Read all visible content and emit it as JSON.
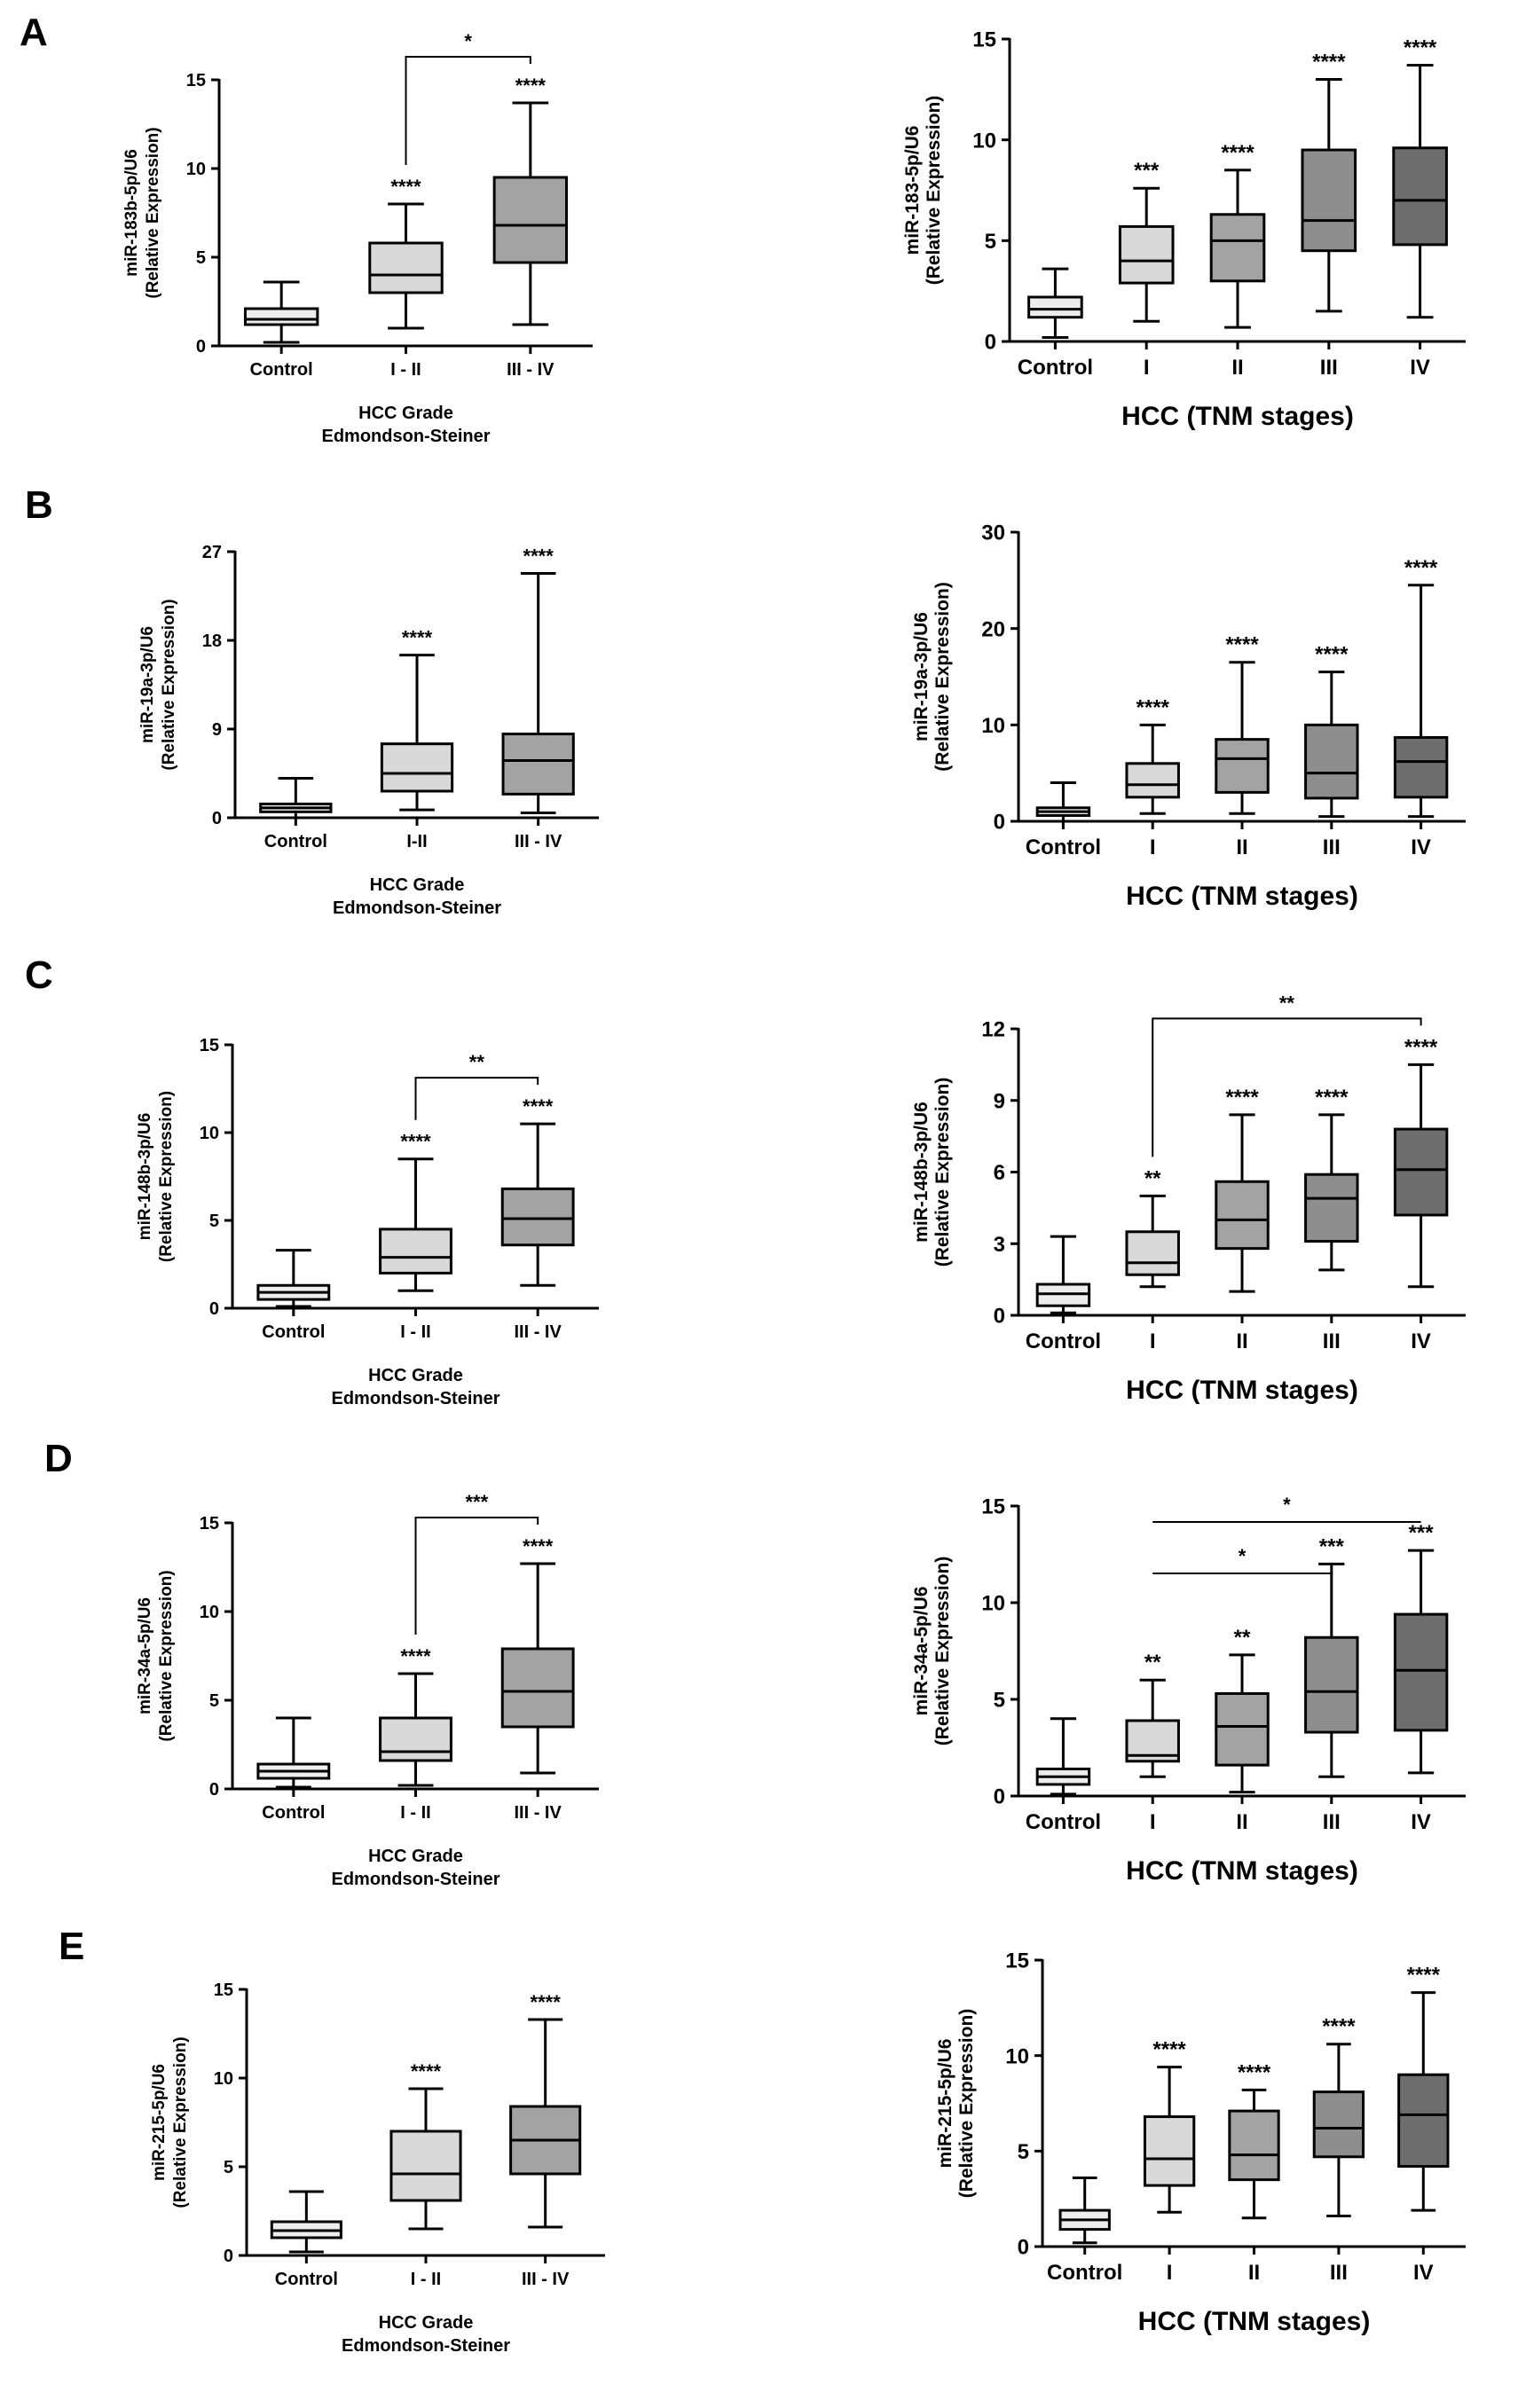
{
  "panels": [
    {
      "letter": "A",
      "left": {
        "ylabel1": "miR-183b-5p/U6",
        "ylabel2": "(Relative Expression)",
        "xlabel1": "HCC Grade",
        "xlabel2": "Edmondson-Steiner"
      },
      "right": {
        "ylabel1": "miR-183-5p/U6",
        "ylabel2": "(Relative Expression)",
        "xlabel1": "HCC (TNM stages)"
      }
    },
    {
      "letter": "B",
      "left": {
        "ylabel1": "miR-19a-3p/U6",
        "ylabel2": "(Relative Expression)",
        "xlabel1": "HCC Grade",
        "xlabel2": "Edmondson-Steiner"
      },
      "right": {
        "ylabel1": "miR-19a-3p/U6",
        "ylabel2": "(Relative Expression)",
        "xlabel1": "HCC (TNM stages)"
      }
    },
    {
      "letter": "C",
      "left": {
        "ylabel1": "miR-148b-3p/U6",
        "ylabel2": "(Relative Expression)",
        "xlabel1": "HCC Grade",
        "xlabel2": "Edmondson-Steiner"
      },
      "right": {
        "ylabel1": "miR-148b-3p/U6",
        "ylabel2": "(Relative Expression)",
        "xlabel1": "HCC (TNM stages)"
      }
    },
    {
      "letter": "D",
      "left": {
        "ylabel1": "miR-34a-5p/U6",
        "ylabel2": "(Relative Expression)",
        "xlabel1": "HCC Grade",
        "xlabel2": "Edmondson-Steiner"
      },
      "right": {
        "ylabel1": "miR-34a-5p/U6",
        "ylabel2": "(Relative Expression)",
        "xlabel1": "HCC (TNM stages)"
      }
    },
    {
      "letter": "E",
      "left": {
        "ylabel1": "miR-215-5p/U6",
        "ylabel2": "(Relative Expression)",
        "xlabel1": "HCC Grade",
        "xlabel2": "Edmondson-Steiner"
      },
      "right": {
        "ylabel1": "miR-215-5p/U6",
        "ylabel2": "(Relative Expression)",
        "xlabel1": "HCC (TNM stages)"
      }
    }
  ],
  "colors": {
    "control": "#ededed",
    "g1": "#d9d9d9",
    "g2": "#a3a3a3",
    "g3": "#8e8e8e",
    "g4": "#6e6e6e",
    "stroke": "#000000"
  },
  "chart_data": [
    {
      "id": "A-left",
      "type": "box",
      "ylim": [
        0,
        15
      ],
      "yticks": [
        0,
        5,
        10,
        15
      ],
      "categories": [
        "Control",
        "I - II",
        "III - IV"
      ],
      "boxes": [
        {
          "min": 0.2,
          "q1": 1.2,
          "median": 1.5,
          "q3": 2.1,
          "max": 3.6,
          "sig": ""
        },
        {
          "min": 1.0,
          "q1": 3.0,
          "median": 4.0,
          "q3": 5.8,
          "max": 8.0,
          "sig": "****"
        },
        {
          "min": 1.2,
          "q1": 4.7,
          "median": 6.8,
          "q3": 9.5,
          "max": 13.7,
          "sig": "****"
        }
      ],
      "brackets": [
        {
          "from": 1,
          "to": 2,
          "label": "*",
          "style": "bracket",
          "level": 0
        }
      ]
    },
    {
      "id": "A-right",
      "type": "box",
      "ylim": [
        0,
        15
      ],
      "yticks": [
        0,
        5,
        10,
        15
      ],
      "categories": [
        "Control",
        "I",
        "II",
        "III",
        "IV"
      ],
      "boxes": [
        {
          "min": 0.2,
          "q1": 1.2,
          "median": 1.6,
          "q3": 2.2,
          "max": 3.6,
          "sig": ""
        },
        {
          "min": 1.0,
          "q1": 2.9,
          "median": 4.0,
          "q3": 5.7,
          "max": 7.6,
          "sig": "***"
        },
        {
          "min": 0.7,
          "q1": 3.0,
          "median": 5.0,
          "q3": 6.3,
          "max": 8.5,
          "sig": "****"
        },
        {
          "min": 1.5,
          "q1": 4.5,
          "median": 6.0,
          "q3": 9.5,
          "max": 13.0,
          "sig": "****"
        },
        {
          "min": 1.2,
          "q1": 4.8,
          "median": 7.0,
          "q3": 9.6,
          "max": 13.7,
          "sig": "****"
        }
      ],
      "brackets": []
    },
    {
      "id": "B-left",
      "type": "box",
      "ylim": [
        0,
        27
      ],
      "yticks": [
        0,
        9,
        18,
        27
      ],
      "categories": [
        "Control",
        "I-II",
        "III - IV"
      ],
      "boxes": [
        {
          "min": 0.0,
          "q1": 0.6,
          "median": 1.0,
          "q3": 1.4,
          "max": 4.0,
          "sig": ""
        },
        {
          "min": 0.8,
          "q1": 2.7,
          "median": 4.5,
          "q3": 7.5,
          "max": 16.5,
          "sig": "****"
        },
        {
          "min": 0.5,
          "q1": 2.4,
          "median": 5.8,
          "q3": 8.5,
          "max": 24.8,
          "sig": "****"
        }
      ],
      "brackets": []
    },
    {
      "id": "B-right",
      "type": "box",
      "ylim": [
        0,
        30
      ],
      "yticks": [
        0,
        10,
        20,
        30
      ],
      "categories": [
        "Control",
        "I",
        "II",
        "III",
        "IV"
      ],
      "boxes": [
        {
          "min": 0.0,
          "q1": 0.6,
          "median": 1.0,
          "q3": 1.4,
          "max": 4.0,
          "sig": ""
        },
        {
          "min": 0.8,
          "q1": 2.5,
          "median": 3.8,
          "q3": 6.0,
          "max": 10.0,
          "sig": "****"
        },
        {
          "min": 0.8,
          "q1": 3.0,
          "median": 6.5,
          "q3": 8.5,
          "max": 16.5,
          "sig": "****"
        },
        {
          "min": 0.5,
          "q1": 2.4,
          "median": 5.0,
          "q3": 10.0,
          "max": 15.5,
          "sig": "****"
        },
        {
          "min": 0.5,
          "q1": 2.5,
          "median": 6.2,
          "q3": 8.7,
          "max": 24.5,
          "sig": "****"
        }
      ],
      "brackets": []
    },
    {
      "id": "C-left",
      "type": "box",
      "ylim": [
        0,
        15
      ],
      "yticks": [
        0,
        5,
        10,
        15
      ],
      "categories": [
        "Control",
        "I - II",
        "III - IV"
      ],
      "boxes": [
        {
          "min": 0.1,
          "q1": 0.5,
          "median": 0.9,
          "q3": 1.3,
          "max": 3.3,
          "sig": ""
        },
        {
          "min": 1.0,
          "q1": 2.0,
          "median": 2.9,
          "q3": 4.5,
          "max": 8.5,
          "sig": "****"
        },
        {
          "min": 1.3,
          "q1": 3.6,
          "median": 5.1,
          "q3": 6.8,
          "max": 10.5,
          "sig": "****"
        }
      ],
      "brackets": [
        {
          "from": 1,
          "to": 2,
          "label": "**",
          "style": "bracket",
          "level": 0
        }
      ]
    },
    {
      "id": "C-right",
      "type": "box",
      "ylim": [
        0,
        12
      ],
      "yticks": [
        0,
        3,
        6,
        9,
        12
      ],
      "categories": [
        "Control",
        "I",
        "II",
        "III",
        "IV"
      ],
      "boxes": [
        {
          "min": 0.1,
          "q1": 0.4,
          "median": 0.9,
          "q3": 1.3,
          "max": 3.3,
          "sig": ""
        },
        {
          "min": 1.2,
          "q1": 1.7,
          "median": 2.2,
          "q3": 3.5,
          "max": 5.0,
          "sig": "**"
        },
        {
          "min": 1.0,
          "q1": 2.8,
          "median": 4.0,
          "q3": 5.6,
          "max": 8.4,
          "sig": "****"
        },
        {
          "min": 1.9,
          "q1": 3.1,
          "median": 4.9,
          "q3": 5.9,
          "max": 8.4,
          "sig": "****"
        },
        {
          "min": 1.2,
          "q1": 4.2,
          "median": 6.1,
          "q3": 7.8,
          "max": 10.5,
          "sig": "****"
        }
      ],
      "brackets": [
        {
          "from": 1,
          "to": 4,
          "label": "**",
          "style": "bracket",
          "level": 0
        }
      ]
    },
    {
      "id": "D-left",
      "type": "box",
      "ylim": [
        0,
        15
      ],
      "yticks": [
        0,
        5,
        10,
        15
      ],
      "categories": [
        "Control",
        "I - II",
        "III - IV"
      ],
      "boxes": [
        {
          "min": 0.1,
          "q1": 0.6,
          "median": 1.0,
          "q3": 1.4,
          "max": 4.0,
          "sig": ""
        },
        {
          "min": 0.2,
          "q1": 1.6,
          "median": 2.1,
          "q3": 4.0,
          "max": 6.5,
          "sig": "****"
        },
        {
          "min": 0.9,
          "q1": 3.5,
          "median": 5.5,
          "q3": 7.9,
          "max": 12.7,
          "sig": "****"
        }
      ],
      "brackets": [
        {
          "from": 1,
          "to": 2,
          "label": "***",
          "style": "bracket",
          "level": 0
        }
      ]
    },
    {
      "id": "D-right",
      "type": "box",
      "ylim": [
        0,
        15
      ],
      "yticks": [
        0,
        5,
        10,
        15
      ],
      "categories": [
        "Control",
        "I",
        "II",
        "III",
        "IV"
      ],
      "boxes": [
        {
          "min": 0.1,
          "q1": 0.6,
          "median": 1.0,
          "q3": 1.4,
          "max": 4.0,
          "sig": ""
        },
        {
          "min": 1.0,
          "q1": 1.8,
          "median": 2.1,
          "q3": 3.9,
          "max": 6.0,
          "sig": "**"
        },
        {
          "min": 0.2,
          "q1": 1.6,
          "median": 3.6,
          "q3": 5.3,
          "max": 7.3,
          "sig": "**"
        },
        {
          "min": 1.0,
          "q1": 3.3,
          "median": 5.4,
          "q3": 8.2,
          "max": 12.0,
          "sig": "***"
        },
        {
          "min": 1.2,
          "q1": 3.4,
          "median": 6.5,
          "q3": 9.4,
          "max": 12.7,
          "sig": "***"
        }
      ],
      "brackets": [
        {
          "from": 1,
          "to": 3,
          "label": "*",
          "style": "line",
          "level": 0
        },
        {
          "from": 1,
          "to": 4,
          "label": "*",
          "style": "line",
          "level": 1
        }
      ]
    },
    {
      "id": "E-left",
      "type": "box",
      "ylim": [
        0,
        15
      ],
      "yticks": [
        0,
        5,
        10,
        15
      ],
      "categories": [
        "Control",
        "I - II",
        "III - IV"
      ],
      "boxes": [
        {
          "min": 0.2,
          "q1": 1.0,
          "median": 1.4,
          "q3": 1.9,
          "max": 3.6,
          "sig": ""
        },
        {
          "min": 1.5,
          "q1": 3.1,
          "median": 4.6,
          "q3": 7.0,
          "max": 9.4,
          "sig": "****"
        },
        {
          "min": 1.6,
          "q1": 4.6,
          "median": 6.5,
          "q3": 8.4,
          "max": 13.3,
          "sig": "****"
        }
      ],
      "brackets": []
    },
    {
      "id": "E-right",
      "type": "box",
      "ylim": [
        0,
        15
      ],
      "yticks": [
        0,
        5,
        10,
        15
      ],
      "categories": [
        "Control",
        "I",
        "II",
        "III",
        "IV"
      ],
      "boxes": [
        {
          "min": 0.2,
          "q1": 0.9,
          "median": 1.4,
          "q3": 1.9,
          "max": 3.6,
          "sig": ""
        },
        {
          "min": 1.8,
          "q1": 3.2,
          "median": 4.6,
          "q3": 6.8,
          "max": 9.4,
          "sig": "****"
        },
        {
          "min": 1.5,
          "q1": 3.5,
          "median": 4.8,
          "q3": 7.1,
          "max": 8.2,
          "sig": "****"
        },
        {
          "min": 1.6,
          "q1": 4.7,
          "median": 6.2,
          "q3": 8.1,
          "max": 10.6,
          "sig": "****"
        },
        {
          "min": 1.9,
          "q1": 4.2,
          "median": 6.9,
          "q3": 9.0,
          "max": 13.3,
          "sig": "****"
        }
      ],
      "brackets": []
    }
  ]
}
